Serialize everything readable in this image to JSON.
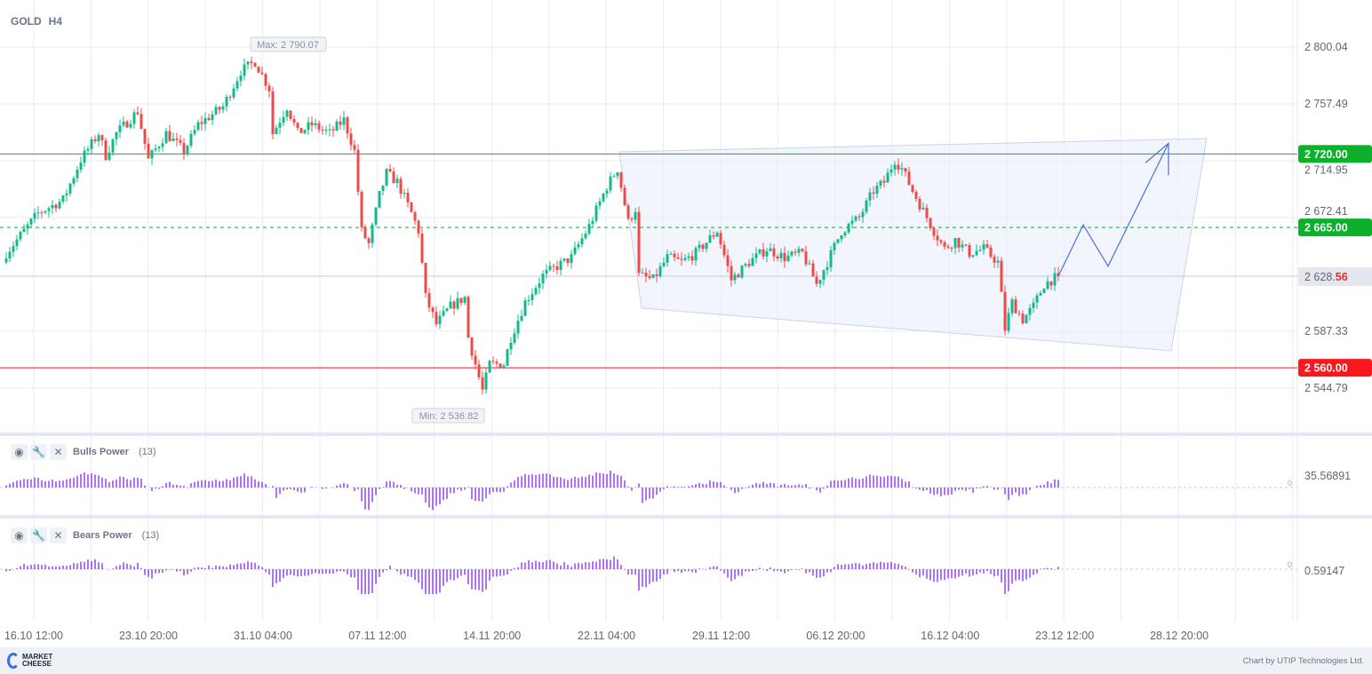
{
  "header": {
    "symbol": "GOLD",
    "timeframe": "H4"
  },
  "colors": {
    "up": "#13b98c",
    "down": "#ef4a4a",
    "green_level": "#0db02b",
    "red_level": "#f7191e",
    "indicator": "#7a18df",
    "drawing": "#4b6fe0"
  },
  "chart_data": {
    "type": "candlestick",
    "y_ticks": [
      "2 800.04",
      "2 757.49",
      "2 714.95",
      "2 672.41",
      "2 587.33",
      "2 544.79"
    ],
    "y_tick_values": [
      2800.04,
      2757.49,
      2714.95,
      2672.41,
      2587.33,
      2544.79
    ],
    "x_ticks": [
      "16.10 12:00",
      "23.10 20:00",
      "31.10 04:00",
      "07.11 12:00",
      "14.11 20:00",
      "22.11 04:00",
      "29.11 12:00",
      "06.12 20:00",
      "16.12 04:00",
      "23.12 12:00",
      "28.12 20:00"
    ],
    "close_path": [
      [
        0,
        2645.8
      ],
      [
        9,
        2675.7
      ],
      [
        16,
        2685.7
      ],
      [
        21,
        2715.6
      ],
      [
        26,
        2735.5
      ],
      [
        28,
        2719
      ],
      [
        31,
        2735.5
      ],
      [
        37,
        2752
      ],
      [
        40,
        2715.6
      ],
      [
        45,
        2735.5
      ],
      [
        50,
        2722
      ],
      [
        54,
        2742
      ],
      [
        61,
        2755.5
      ],
      [
        66,
        2782
      ],
      [
        70,
        2789
      ],
      [
        74,
        2769
      ],
      [
        75,
        2735.5
      ],
      [
        79,
        2755.5
      ],
      [
        82,
        2735.5
      ],
      [
        86,
        2742
      ],
      [
        91,
        2735.5
      ],
      [
        95,
        2745.5
      ],
      [
        98,
        2722
      ],
      [
        100,
        2662.4
      ],
      [
        102,
        2652.5
      ],
      [
        105,
        2689
      ],
      [
        107,
        2705.6
      ],
      [
        110,
        2699
      ],
      [
        114,
        2675.7
      ],
      [
        116,
        2662.4
      ],
      [
        118,
        2612.6
      ],
      [
        121,
        2592.6
      ],
      [
        125,
        2605.9
      ],
      [
        129,
        2612.6
      ],
      [
        130,
        2582.7
      ],
      [
        134,
        2542.8
      ],
      [
        136,
        2562.7
      ],
      [
        140,
        2562.7
      ],
      [
        142,
        2582.7
      ],
      [
        146,
        2609.3
      ],
      [
        151,
        2629
      ],
      [
        155,
        2635.9
      ],
      [
        159,
        2642.5
      ],
      [
        164,
        2666
      ],
      [
        169,
        2695.7
      ],
      [
        172,
        2709
      ],
      [
        175,
        2669
      ],
      [
        177,
        2679
      ],
      [
        178,
        2629
      ],
      [
        182,
        2625.9
      ],
      [
        186,
        2642.5
      ],
      [
        190,
        2639
      ],
      [
        194,
        2645.8
      ],
      [
        200,
        2662.4
      ],
      [
        204,
        2625.9
      ],
      [
        209,
        2639
      ],
      [
        214,
        2649
      ],
      [
        219,
        2642.5
      ],
      [
        224,
        2645.8
      ],
      [
        228,
        2622.5
      ],
      [
        231,
        2639
      ],
      [
        235,
        2662.4
      ],
      [
        240,
        2672.4
      ],
      [
        244,
        2692.4
      ],
      [
        247,
        2699
      ],
      [
        250,
        2715.6
      ],
      [
        252,
        2709
      ],
      [
        255,
        2692.4
      ],
      [
        257,
        2682.4
      ],
      [
        261,
        2662.4
      ],
      [
        264,
        2649
      ],
      [
        267,
        2655.8
      ],
      [
        271,
        2645.8
      ],
      [
        275,
        2649
      ],
      [
        279,
        2639
      ],
      [
        281,
        2589
      ],
      [
        283,
        2609
      ],
      [
        286,
        2596
      ],
      [
        289,
        2605.9
      ],
      [
        292,
        2622.5
      ],
      [
        296,
        2628.56
      ]
    ],
    "levels": [
      {
        "price": 2720.0,
        "label": "2 720.00",
        "style": "solid",
        "color": "green"
      },
      {
        "price": 2665.0,
        "label": "2 665.00",
        "style": "dashed",
        "color": "green"
      },
      {
        "price": 2560.0,
        "label": "2 560.00",
        "style": "solid",
        "color": "red"
      }
    ],
    "current_price": {
      "value": 2628.56,
      "label_main": "2 628.",
      "label_tail": "56"
    },
    "max_label": "Max: 2 790.07",
    "min_label": "Min: 2 536.82",
    "forecast_path": [
      [
        296,
        2628.56
      ],
      [
        303,
        2667
      ],
      [
        310,
        2636
      ],
      [
        327,
        2728
      ]
    ]
  },
  "indicators": [
    {
      "name": "Bulls Power",
      "param": "(13)",
      "scale_label": "35.56891",
      "zero_label": "0"
    },
    {
      "name": "Bears Power",
      "param": "(13)",
      "scale_label": "0.59147",
      "zero_label": "0"
    }
  ],
  "footer": {
    "logo_line1": "MARKET",
    "logo_line2": "CHEESE",
    "credit": "Chart by UTIP Technologies Ltd."
  }
}
